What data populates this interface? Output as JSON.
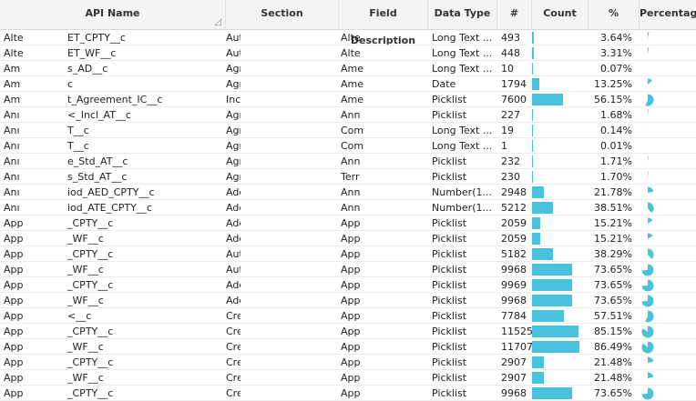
{
  "headers": {
    "api_name": "API Name",
    "section": "Section",
    "field_description": "Field Description",
    "data_type": "Data Type",
    "number": "#",
    "count": "Count",
    "percent": "%",
    "percentage": "Percentage"
  },
  "bar_color": "#47c1dc",
  "rows": [
    {
      "api_a": "Alte",
      "api_b": "ET_CPTY__c",
      "section": "Aut",
      "desc": "Alte",
      "dtype": "Long Text ...",
      "num": "493",
      "pct": "3.64%",
      "frac": 0.0364
    },
    {
      "api_a": "Alte",
      "api_b": "ET_WF__c",
      "section": "Aut",
      "desc": "Alte",
      "dtype": "Long Text ...",
      "num": "448",
      "pct": "3.31%",
      "frac": 0.0331
    },
    {
      "api_a": "Am",
      "api_b": "s_AD__c",
      "section": "Agr",
      "desc": "Ame",
      "dtype": "Long Text ...",
      "num": "10",
      "pct": "0.07%",
      "frac": 0.0007
    },
    {
      "api_a": "Am",
      "api_b": "c",
      "section": "Agr",
      "desc": "Ame",
      "dtype": "Date",
      "num": "1794",
      "pct": "13.25%",
      "frac": 0.1325
    },
    {
      "api_a": "Am",
      "api_b": "t_Agreement_IC__c",
      "section": "Inc",
      "desc": "Ame",
      "dtype": "Picklist",
      "num": "7600",
      "pct": "56.15%",
      "frac": 0.5615
    },
    {
      "api_a": "Anı",
      "api_b": "<_Incl_AT__c",
      "section": "Agr",
      "desc": "Ann",
      "dtype": "Picklist",
      "num": "227",
      "pct": "1.68%",
      "frac": 0.0168
    },
    {
      "api_a": "Anı",
      "api_b": "T__c",
      "section": "Agr",
      "desc": "Com",
      "dtype": "Long Text ...",
      "num": "19",
      "pct": "0.14%",
      "frac": 0.0014
    },
    {
      "api_a": "Anı",
      "api_b": "T__c",
      "section": "Agr",
      "desc": "Com",
      "dtype": "Long Text ...",
      "num": "1",
      "pct": "0.01%",
      "frac": 0.0001
    },
    {
      "api_a": "Anı",
      "api_b": "e_Std_AT__c",
      "section": "Agr",
      "desc": "Ann",
      "dtype": "Picklist",
      "num": "232",
      "pct": "1.71%",
      "frac": 0.0171
    },
    {
      "api_a": "Anı",
      "api_b": "s_Std_AT__c",
      "section": "Agr",
      "desc": "Terr",
      "dtype": "Picklist",
      "num": "230",
      "pct": "1.70%",
      "frac": 0.017
    },
    {
      "api_a": "Anı",
      "api_b": "iod_AED_CPTY__c",
      "section": "Adc",
      "desc": "Ann",
      "dtype": "Number(1...",
      "num": "2948",
      "pct": "21.78%",
      "frac": 0.2178
    },
    {
      "api_a": "Anı",
      "api_b": "iod_ATE_CPTY__c",
      "section": "Adc",
      "desc": "Ann",
      "dtype": "Number(1...",
      "num": "5212",
      "pct": "38.51%",
      "frac": 0.3851
    },
    {
      "api_a": "App",
      "api_b": "_CPTY__c",
      "section": "Adc",
      "desc": "App",
      "dtype": "Picklist",
      "num": "2059",
      "pct": "15.21%",
      "frac": 0.1521
    },
    {
      "api_a": "App",
      "api_b": "_WF__c",
      "section": "Adc",
      "desc": "App",
      "dtype": "Picklist",
      "num": "2059",
      "pct": "15.21%",
      "frac": 0.1521
    },
    {
      "api_a": "App",
      "api_b": "_CPTY__c",
      "section": "Aut",
      "desc": "App",
      "dtype": "Picklist",
      "num": "5182",
      "pct": "38.29%",
      "frac": 0.3829
    },
    {
      "api_a": "App",
      "api_b": "_WF__c",
      "section": "Aut",
      "desc": "App",
      "dtype": "Picklist",
      "num": "9968",
      "pct": "73.65%",
      "frac": 0.7365
    },
    {
      "api_a": "App",
      "api_b": "_CPTY__c",
      "section": "Adc",
      "desc": "App",
      "dtype": "Picklist",
      "num": "9969",
      "pct": "73.65%",
      "frac": 0.7365
    },
    {
      "api_a": "App",
      "api_b": "_WF__c",
      "section": "Adc",
      "desc": "App",
      "dtype": "Picklist",
      "num": "9968",
      "pct": "73.65%",
      "frac": 0.7365
    },
    {
      "api_a": "App",
      "api_b": "<__c",
      "section": "Cre",
      "desc": "App",
      "dtype": "Picklist",
      "num": "7784",
      "pct": "57.51%",
      "frac": 0.5751
    },
    {
      "api_a": "App",
      "api_b": "_CPTY__c",
      "section": "Cre",
      "desc": "App",
      "dtype": "Picklist",
      "num": "11525",
      "pct": "85.15%",
      "frac": 0.8515
    },
    {
      "api_a": "App",
      "api_b": "_WF__c",
      "section": "Cre",
      "desc": "App",
      "dtype": "Picklist",
      "num": "11707",
      "pct": "86.49%",
      "frac": 0.8649
    },
    {
      "api_a": "App",
      "api_b": "_CPTY__c",
      "section": "Cre",
      "desc": "App",
      "dtype": "Picklist",
      "num": "2907",
      "pct": "21.48%",
      "frac": 0.2148
    },
    {
      "api_a": "App",
      "api_b": "_WF__c",
      "section": "Cre",
      "desc": "App",
      "dtype": "Picklist",
      "num": "2907",
      "pct": "21.48%",
      "frac": 0.2148
    },
    {
      "api_a": "App",
      "api_b": "_CPTY__c",
      "section": "Cre",
      "desc": "App",
      "dtype": "Picklist",
      "num": "9968",
      "pct": "73.65%",
      "frac": 0.7365
    }
  ]
}
